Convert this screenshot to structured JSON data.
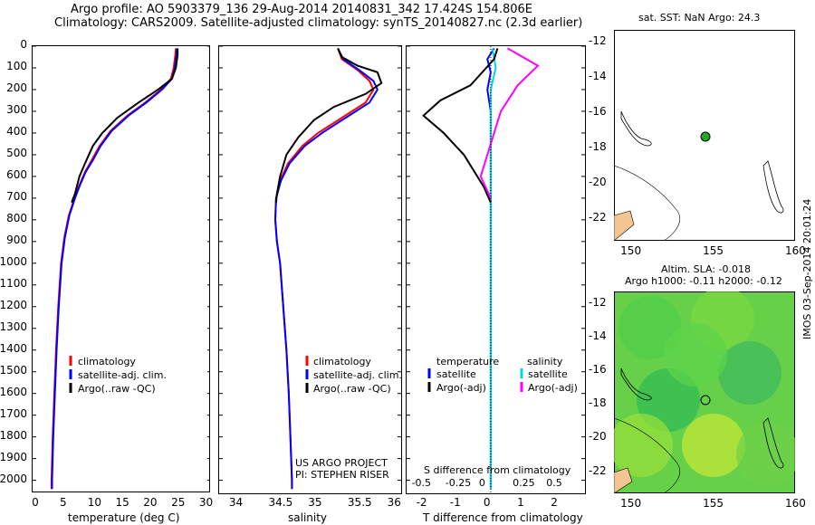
{
  "header": {
    "line1": "Argo profile: AO 5903379_136 29-Aug-2014 20140831_342 17.424S 154.806E",
    "line2": "Climatology: CARS2009. Satellite-adjusted climatology: synTS_20140827.nc (2.3d earlier)"
  },
  "colors": {
    "climatology": "#ff0000",
    "satellite": "#0000ff",
    "argo": "#000000",
    "sat_salinity": "#00d8e8",
    "argo_salinity": "#ff00ff",
    "land": "#f5c493",
    "float_marker": "#22aa22"
  },
  "depth_ticks": [
    "0",
    "100",
    "200",
    "300",
    "400",
    "500",
    "600",
    "700",
    "800",
    "900",
    "1000",
    "1100",
    "1200",
    "1300",
    "1400",
    "1500",
    "1600",
    "1700",
    "1800",
    "1900",
    "2000"
  ],
  "chart_data": [
    {
      "type": "line",
      "id": "temperature",
      "xlabel": "temperature (deg C)",
      "xlim": [
        -1,
        31
      ],
      "ylim": [
        2060,
        0
      ],
      "xticks": [
        "0",
        "5",
        "10",
        "15",
        "20",
        "25",
        "30"
      ],
      "legend": [
        "climatology",
        "satellite-adj. clim.",
        "Argo(..raw -QC)"
      ],
      "series": [
        {
          "name": "climatology",
          "color": "#ff0000",
          "points": [
            [
              24.7,
              10
            ],
            [
              24.6,
              40
            ],
            [
              24.3,
              100
            ],
            [
              23.8,
              150
            ],
            [
              22.0,
              200
            ],
            [
              19.2,
              260
            ],
            [
              16.0,
              320
            ],
            [
              13.0,
              390
            ],
            [
              11.0,
              460
            ],
            [
              9.5,
              530
            ],
            [
              8.4,
              580
            ],
            [
              7.4,
              640
            ],
            [
              6.5,
              700
            ],
            [
              5.5,
              780
            ],
            [
              4.7,
              880
            ],
            [
              4.1,
              1000
            ],
            [
              3.6,
              1200
            ],
            [
              3.2,
              1400
            ],
            [
              2.9,
              1600
            ],
            [
              2.6,
              1800
            ],
            [
              2.4,
              2000
            ],
            [
              2.4,
              2040
            ]
          ]
        },
        {
          "name": "satellite-adj. clim.",
          "color": "#0000ff",
          "points": [
            [
              24.9,
              10
            ],
            [
              24.8,
              40
            ],
            [
              24.5,
              100
            ],
            [
              24.0,
              150
            ],
            [
              22.2,
              200
            ],
            [
              19.4,
              260
            ],
            [
              16.2,
              320
            ],
            [
              13.2,
              390
            ],
            [
              11.2,
              460
            ],
            [
              9.7,
              530
            ],
            [
              8.5,
              580
            ],
            [
              7.5,
              640
            ],
            [
              6.6,
              700
            ],
            [
              5.6,
              780
            ],
            [
              4.8,
              880
            ],
            [
              4.2,
              1000
            ],
            [
              3.7,
              1200
            ],
            [
              3.3,
              1400
            ],
            [
              3.0,
              1600
            ],
            [
              2.7,
              1800
            ],
            [
              2.5,
              2000
            ],
            [
              2.5,
              2040
            ]
          ]
        },
        {
          "name": "Argo(..raw -QC)",
          "color": "#000000",
          "points": [
            [
              25.0,
              10
            ],
            [
              25.0,
              40
            ],
            [
              24.7,
              100
            ],
            [
              24.0,
              150
            ],
            [
              21.5,
              200
            ],
            [
              18.0,
              260
            ],
            [
              14.2,
              330
            ],
            [
              11.5,
              400
            ],
            [
              9.8,
              460
            ],
            [
              8.4,
              540
            ],
            [
              7.4,
              600
            ],
            [
              6.6,
              680
            ],
            [
              6.0,
              720
            ]
          ]
        }
      ]
    },
    {
      "type": "line",
      "id": "salinity",
      "xlabel": "salinity",
      "xlim": [
        33.75,
        36.05
      ],
      "ylim": [
        2060,
        0
      ],
      "xticks": [
        "34",
        "34.5",
        "35",
        "35.5",
        "36"
      ],
      "legend": [
        "climatology",
        "satellite-adj. clim.",
        "Argo(..raw -QC)"
      ],
      "series": [
        {
          "name": "climatology",
          "color": "#ff0000",
          "points": [
            [
              35.25,
              10
            ],
            [
              35.3,
              60
            ],
            [
              35.5,
              110
            ],
            [
              35.65,
              160
            ],
            [
              35.7,
              200
            ],
            [
              35.6,
              260
            ],
            [
              35.3,
              330
            ],
            [
              35.0,
              400
            ],
            [
              34.8,
              460
            ],
            [
              34.62,
              540
            ],
            [
              34.52,
              620
            ],
            [
              34.47,
              700
            ],
            [
              34.46,
              800
            ],
            [
              34.48,
              900
            ],
            [
              34.52,
              1000
            ],
            [
              34.56,
              1200
            ],
            [
              34.6,
              1400
            ],
            [
              34.63,
              1600
            ],
            [
              34.65,
              1800
            ],
            [
              34.67,
              2000
            ],
            [
              34.67,
              2040
            ]
          ]
        },
        {
          "name": "satellite-adj. clim.",
          "color": "#0000ff",
          "points": [
            [
              35.25,
              10
            ],
            [
              35.32,
              60
            ],
            [
              35.52,
              110
            ],
            [
              35.7,
              160
            ],
            [
              35.75,
              200
            ],
            [
              35.65,
              260
            ],
            [
              35.35,
              330
            ],
            [
              35.05,
              400
            ],
            [
              34.83,
              460
            ],
            [
              34.64,
              540
            ],
            [
              34.53,
              620
            ],
            [
              34.47,
              700
            ],
            [
              34.46,
              800
            ],
            [
              34.48,
              900
            ],
            [
              34.52,
              1000
            ],
            [
              34.56,
              1200
            ],
            [
              34.6,
              1400
            ],
            [
              34.63,
              1600
            ],
            [
              34.65,
              1800
            ],
            [
              34.67,
              2000
            ],
            [
              34.67,
              2040
            ]
          ]
        },
        {
          "name": "Argo(..raw -QC)",
          "color": "#000000",
          "points": [
            [
              35.25,
              10
            ],
            [
              35.3,
              50
            ],
            [
              35.5,
              90
            ],
            [
              35.75,
              120
            ],
            [
              35.8,
              170
            ],
            [
              35.6,
              220
            ],
            [
              35.2,
              280
            ],
            [
              34.95,
              340
            ],
            [
              34.75,
              420
            ],
            [
              34.6,
              500
            ],
            [
              34.52,
              600
            ],
            [
              34.48,
              680
            ],
            [
              34.47,
              720
            ]
          ]
        }
      ]
    },
    {
      "type": "line",
      "id": "difference",
      "xlabel": "T difference from climatology",
      "xlabel_top": "S difference from climatology",
      "xlim": [
        -2.5,
        2.8
      ],
      "ylim": [
        2060,
        0
      ],
      "xticks": [
        "-2",
        "-1",
        "0",
        "1",
        "2"
      ],
      "xticks_top": [
        "-0.5",
        "-0.25",
        "0",
        "0.25",
        "0.5"
      ],
      "legend_title_t": "temperature",
      "legend_title_s": "salinity",
      "legend": [
        "satellite",
        "Argo(-adj)"
      ],
      "series": [
        {
          "name": "temperature satellite",
          "color": "#0000ff",
          "points": [
            [
              0.1,
              10
            ],
            [
              -0.1,
              60
            ],
            [
              0.0,
              120
            ],
            [
              -0.1,
              200
            ],
            [
              0.0,
              300
            ],
            [
              0.0,
              500
            ],
            [
              0.0,
              700
            ],
            [
              0.0,
              900
            ],
            [
              0.0,
              1200
            ],
            [
              0.0,
              1600
            ],
            [
              0.0,
              2040
            ]
          ]
        },
        {
          "name": "salinity satellite",
          "color": "#00d8e8",
          "points": [
            [
              0.05,
              10
            ],
            [
              0.15,
              100
            ],
            [
              0.0,
              200
            ],
            [
              0.0,
              600
            ],
            [
              0.0,
              2040
            ]
          ]
        },
        {
          "name": "Argo T",
          "color": "#000000",
          "points": [
            [
              0.2,
              10
            ],
            [
              0.1,
              60
            ],
            [
              -0.6,
              180
            ],
            [
              -1.5,
              250
            ],
            [
              -2.0,
              320
            ],
            [
              -1.4,
              400
            ],
            [
              -0.8,
              500
            ],
            [
              -0.2,
              650
            ],
            [
              0.0,
              720
            ]
          ]
        },
        {
          "name": "Argo S",
          "color": "#ff00ff",
          "points": [
            [
              0.5,
              10
            ],
            [
              1.4,
              90
            ],
            [
              0.8,
              180
            ],
            [
              0.3,
              300
            ],
            [
              -0.3,
              600
            ],
            [
              0.0,
              700
            ]
          ]
        }
      ]
    }
  ],
  "sst_map": {
    "title": "sat. SST: NaN Argo: 24.3",
    "xticks": [
      "150",
      "155",
      "160"
    ],
    "yticks": [
      "-12",
      "-14",
      "-16",
      "-18",
      "-20",
      "-22"
    ]
  },
  "sla_map": {
    "title1": "Altim. SLA: -0.018",
    "title2": "Argo h1000: -0.11 h2000: -0.12",
    "xticks": [
      "150",
      "155",
      "160"
    ],
    "yticks": [
      "-12",
      "-14",
      "-16",
      "-18",
      "-20",
      "-22"
    ]
  },
  "footer_left": {
    "line1": "US ARGO PROJECT",
    "line2": "PI: STEPHEN RISER"
  },
  "watermark": "IMOS 03-Sep-2014 20:01:24"
}
